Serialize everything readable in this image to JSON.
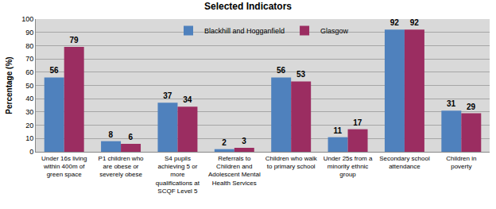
{
  "chart_data": {
    "type": "bar",
    "title": "Selected Indicators",
    "y_label": "Percentage (%)",
    "categories": [
      "Under 16s living within 400m of green space",
      "P1 children who are obese or severely obese",
      "S4 pupils achieving 5 or more qualifications at SCQF Level 5",
      "Referrals to Children and Adolescent Mental Health Services",
      "Children who walk to primary school",
      "Under 25s from a minority ethnic group",
      "Secondary school attendance",
      "Children in poverty"
    ],
    "series": [
      {
        "name": "Blackhill and Hogganfield",
        "color": "#4f81bd",
        "values": [
          56,
          8,
          37,
          2,
          56,
          11,
          92,
          31
        ]
      },
      {
        "name": "Glasgow",
        "color": "#9b2d61",
        "values": [
          79,
          6,
          34,
          3,
          53,
          17,
          92,
          29
        ]
      }
    ],
    "ylim": [
      0,
      100
    ],
    "yticks": [
      0,
      10,
      20,
      30,
      40,
      50,
      60,
      70,
      80,
      90,
      100
    ],
    "grid": true,
    "legend": "top",
    "data_labels": true
  }
}
